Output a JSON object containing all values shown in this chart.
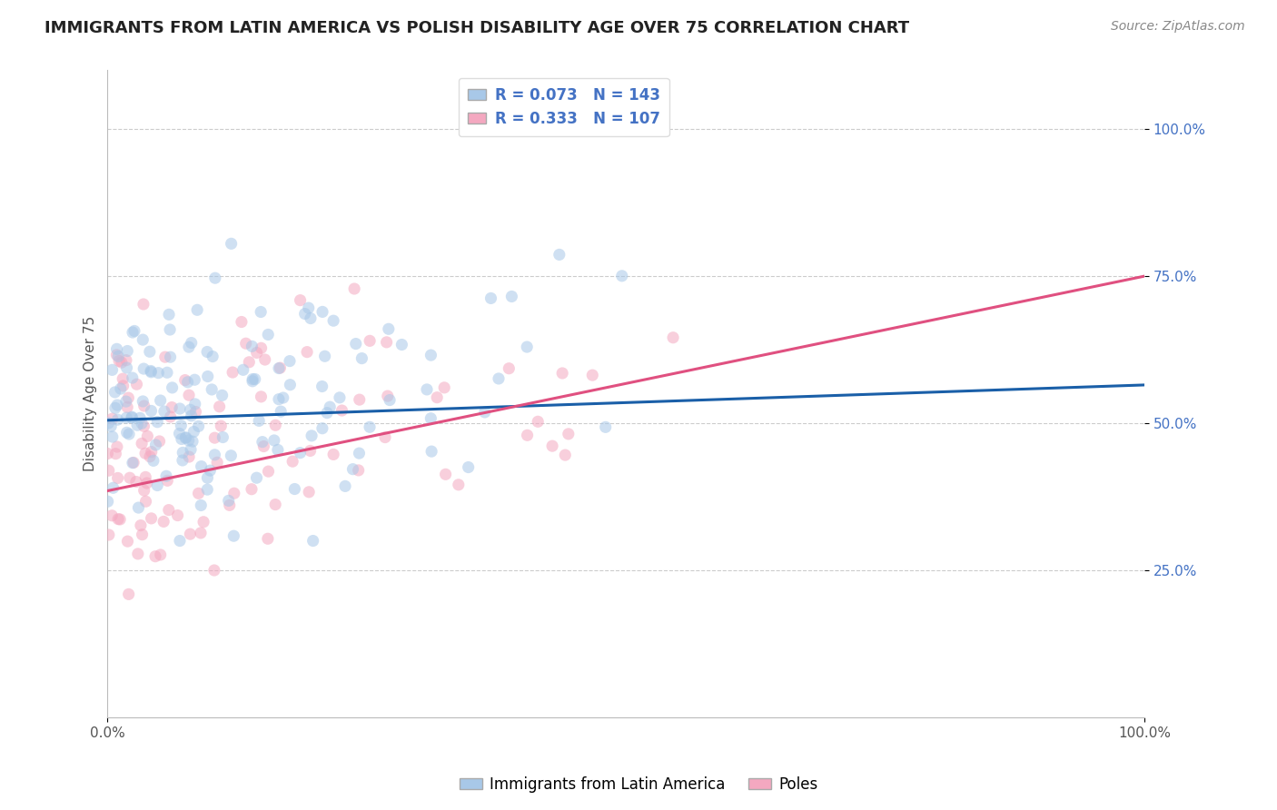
{
  "title": "IMMIGRANTS FROM LATIN AMERICA VS POLISH DISABILITY AGE OVER 75 CORRELATION CHART",
  "source": "Source: ZipAtlas.com",
  "ylabel": "Disability Age Over 75",
  "xlim": [
    0.0,
    1.0
  ],
  "ylim": [
    0.0,
    1.1
  ],
  "yticks": [
    0.25,
    0.5,
    0.75,
    1.0
  ],
  "ytick_labels": [
    "25.0%",
    "50.0%",
    "75.0%",
    "100.0%"
  ],
  "xticks": [
    0.0,
    1.0
  ],
  "xtick_labels": [
    "0.0%",
    "100.0%"
  ],
  "blue_R": 0.073,
  "blue_N": 143,
  "pink_R": 0.333,
  "pink_N": 107,
  "blue_label": "Immigrants from Latin America",
  "pink_label": "Poles",
  "blue_color": "#a8c8e8",
  "pink_color": "#f4a8c0",
  "blue_line_color": "#1a5fa8",
  "pink_line_color": "#e05080",
  "tick_color": "#4472c4",
  "title_fontsize": 13,
  "axis_label_fontsize": 11,
  "tick_fontsize": 11,
  "legend_fontsize": 12,
  "source_fontsize": 10,
  "background_color": "#ffffff",
  "grid_color": "#cccccc",
  "scatter_alpha": 0.55,
  "scatter_size": 90,
  "blue_intercept": 0.505,
  "blue_slope": 0.06,
  "pink_intercept": 0.385,
  "pink_slope": 0.365
}
